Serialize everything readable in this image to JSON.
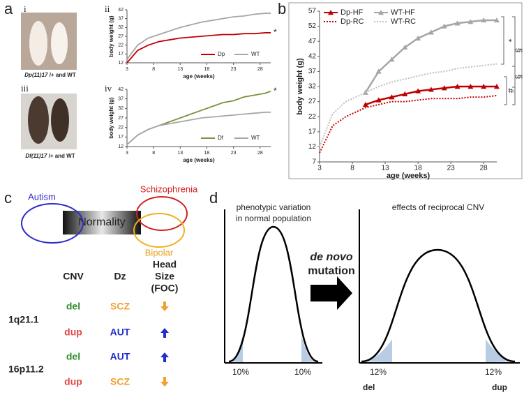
{
  "panel_labels": [
    "a",
    "b",
    "c",
    "d"
  ],
  "subpanel_labels": [
    "i",
    "ii",
    "iii",
    "iv"
  ],
  "photos": [
    {
      "strain": "Dp(11)17",
      "rest": " /+ and WT"
    },
    {
      "strain": "Df(11)17",
      "rest": " /+ and WT"
    }
  ],
  "chart_data": [
    {
      "type": "line",
      "ylabel": "body weight (g)",
      "xlabel": "age (weeks)",
      "x": [
        3,
        5,
        7,
        9,
        11,
        13,
        15,
        17,
        19,
        21,
        23,
        25,
        27,
        29,
        30
      ],
      "xlim": [
        3,
        30
      ],
      "xticks": [
        3,
        8,
        13,
        18,
        23,
        28
      ],
      "ylim": [
        12,
        42
      ],
      "yticks": [
        12,
        17,
        22,
        27,
        32,
        37,
        42
      ],
      "legend": "lower right",
      "series": [
        {
          "name": "Dp",
          "color": "#c00000",
          "values": [
            12,
            19,
            22,
            24,
            25,
            26,
            26.5,
            27,
            27.5,
            28,
            28,
            28.5,
            28.5,
            29,
            29
          ]
        },
        {
          "name": "WT",
          "color": "#a6a6a6",
          "values": [
            14,
            22,
            26,
            28,
            30,
            32,
            33.5,
            35,
            36,
            37,
            38,
            38.5,
            39.5,
            40,
            40
          ]
        }
      ],
      "annotations": [
        "*"
      ]
    },
    {
      "type": "line",
      "ylabel": "body weight (g)",
      "xlabel": "age (weeks)",
      "x": [
        3,
        5,
        7,
        9,
        11,
        13,
        15,
        17,
        19,
        21,
        23,
        25,
        27,
        29,
        30
      ],
      "xlim": [
        3,
        30
      ],
      "xticks": [
        3,
        8,
        13,
        18,
        23,
        28
      ],
      "ylim": [
        12,
        42
      ],
      "yticks": [
        12,
        17,
        22,
        27,
        32,
        37,
        42
      ],
      "legend": "lower right",
      "series": [
        {
          "name": "Df",
          "color": "#77933c",
          "values": [
            13,
            18,
            21,
            23,
            25,
            27,
            29,
            31,
            33,
            35,
            36,
            38,
            39,
            40,
            41
          ]
        },
        {
          "name": "WT",
          "color": "#a6a6a6",
          "values": [
            13,
            18,
            21,
            23,
            24,
            25,
            26,
            27,
            27.5,
            28,
            28.5,
            29,
            29.5,
            30,
            30
          ]
        }
      ],
      "annotations": [
        "*"
      ]
    },
    {
      "type": "line",
      "ylabel": "body weight (g)",
      "xlabel": "age (weeks)",
      "x": [
        3,
        5,
        7,
        9,
        10,
        12,
        14,
        16,
        18,
        20,
        22,
        24,
        26,
        28,
        30
      ],
      "xlim": [
        3,
        30
      ],
      "xticks": [
        3,
        8,
        13,
        18,
        23,
        28
      ],
      "ylim": [
        7,
        57
      ],
      "yticks": [
        7,
        12,
        17,
        22,
        27,
        32,
        37,
        42,
        47,
        52,
        57
      ],
      "legend": "upper left",
      "series": [
        {
          "name": "Dp-HF",
          "color": "#c00000",
          "style": "solid",
          "marker": "triangle",
          "values": [
            null,
            null,
            null,
            null,
            26,
            27.5,
            28.5,
            29.5,
            30.5,
            31,
            31.5,
            32,
            32,
            32,
            32
          ]
        },
        {
          "name": "WT-HF",
          "color": "#a6a6a6",
          "style": "solid",
          "marker": "triangle",
          "values": [
            null,
            null,
            null,
            null,
            30,
            37,
            41,
            45,
            48,
            50,
            52,
            53,
            53.5,
            54,
            54
          ]
        },
        {
          "name": "Dp-RC",
          "color": "#c00000",
          "style": "dotted",
          "marker": "none",
          "values": [
            10,
            19,
            22,
            24,
            25,
            26,
            27,
            27,
            27.5,
            28,
            28,
            28,
            28.5,
            28.5,
            29
          ]
        },
        {
          "name": "WT-RC",
          "color": "#bfbfbf",
          "style": "dotted",
          "marker": "none",
          "values": [
            12,
            23,
            27,
            29,
            30,
            32,
            33.5,
            34.5,
            35.5,
            36.5,
            37,
            38,
            38.5,
            39,
            39.5
          ]
        }
      ],
      "annotations": [
        "*",
        "§",
        "§",
        "#"
      ]
    }
  ],
  "panel_c": {
    "autism": "Autism",
    "schizophrenia": "Schizophrenia",
    "bipolar": "Bipolar",
    "bar": "Normality",
    "headers": [
      "CNV",
      "Dz",
      [
        "Head",
        "Size",
        "(FOC)"
      ]
    ],
    "loci": [
      {
        "name": "1q21.1",
        "rows": [
          {
            "cnv": "del",
            "dz": "SCZ"
          },
          {
            "cnv": "dup",
            "dz": "AUT"
          }
        ]
      },
      {
        "name": "16p11.2",
        "rows": [
          {
            "cnv": "del",
            "dz": "AUT"
          },
          {
            "cnv": "dup",
            "dz": "SCZ"
          }
        ]
      }
    ]
  },
  "panel_d": {
    "left_title": [
      "phenotypic variation",
      "in normal population"
    ],
    "arrow_label": [
      "de novo",
      "mutation"
    ],
    "right_title": "effects of reciprocal CNV",
    "left_tails": [
      "10%",
      "10%"
    ],
    "right_tails": [
      "12%",
      "12%"
    ],
    "right_ends": [
      "del",
      "dup"
    ]
  }
}
